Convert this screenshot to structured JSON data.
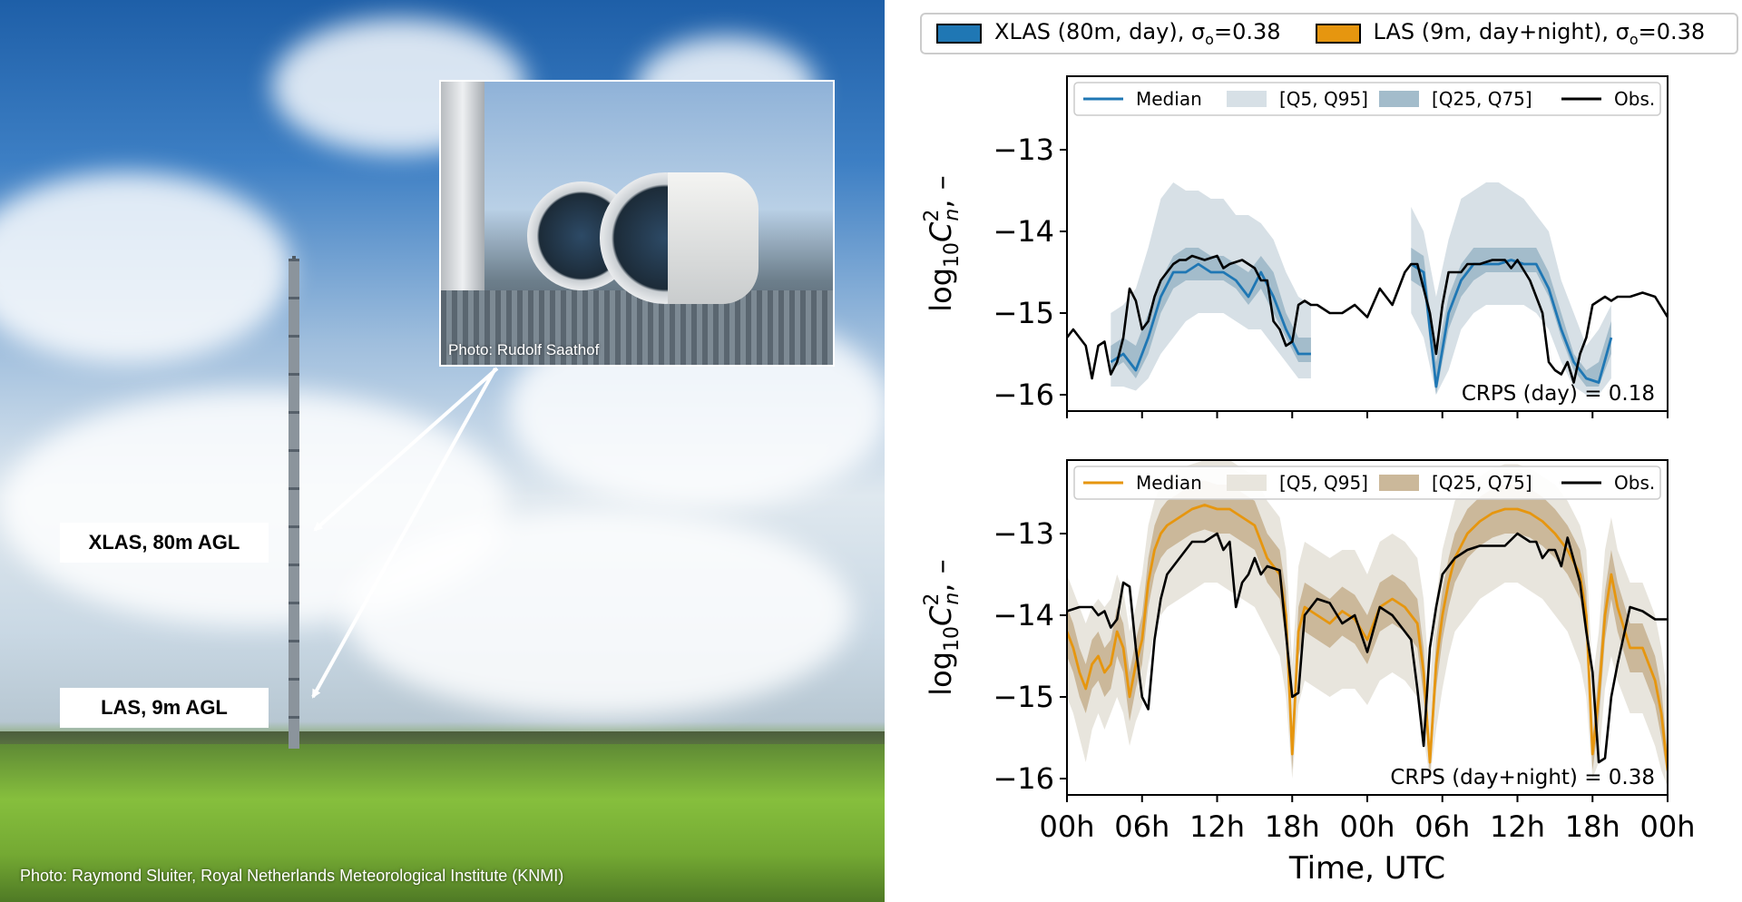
{
  "photo": {
    "label_xlas": "XLAS, 80m AGL",
    "label_las": "LAS, 9m AGL",
    "inset_credit": "Photo: Rudolf Saathof",
    "main_credit": "Photo: Raymond Sluiter, Royal Netherlands Meteorological Institute (KNMI)"
  },
  "top_legend": [
    {
      "text": "XLAS (80m, day), σ",
      "sub": "o",
      "suffix": "=0.38",
      "color": "#1f77b4"
    },
    {
      "text": "LAS (9m, day+night), σ",
      "sub": "o",
      "suffix": "=0.38",
      "color": "#e6960f"
    }
  ],
  "chart_data": [
    {
      "type": "line",
      "ylabel": "log10Cn2, –",
      "ylabel_parts": {
        "base": "log",
        "base_sub": "10",
        "var": "C",
        "var_sup": "2",
        "var_sub": "n",
        "unit": ", –"
      },
      "xlim": [
        0,
        48
      ],
      "ylim": [
        -16.2,
        -12.1
      ],
      "yticks": [
        -16,
        -15,
        -14,
        -13
      ],
      "ytick_labels": [
        "−16",
        "−15",
        "−14",
        "−13"
      ],
      "xticks": [
        0,
        6,
        12,
        18,
        24,
        30,
        36,
        42,
        48
      ],
      "xtick_labels": [],
      "grid": false,
      "legend": {
        "placement": "top",
        "entries": [
          "Median",
          "[Q5, Q95]",
          "[Q25, Q75]",
          "Obs."
        ]
      },
      "annotation": "CRPS (day) = 0.18",
      "colors": {
        "median": "#1f77b4",
        "q95": "#d7e0e6",
        "q75": "#a3bccb",
        "obs": "#000000"
      },
      "segments": [
        {
          "x": [
            3.5,
            4.5,
            5.5,
            6.5,
            7.5,
            8.5,
            9.5,
            10.5,
            11.5,
            12.5,
            13.5,
            14.5,
            15.5,
            16.5,
            17.5,
            18.5,
            19.5
          ],
          "median": [
            -15.6,
            -15.5,
            -15.7,
            -15.3,
            -14.8,
            -14.5,
            -14.5,
            -14.4,
            -14.5,
            -14.5,
            -14.6,
            -14.8,
            -14.5,
            -14.8,
            -15.2,
            -15.5,
            -15.5
          ],
          "q5": [
            -15.9,
            -15.9,
            -15.95,
            -15.8,
            -15.5,
            -15.3,
            -15.1,
            -15.0,
            -15.0,
            -15.0,
            -15.1,
            -15.2,
            -15.2,
            -15.4,
            -15.6,
            -15.8,
            -15.8
          ],
          "q95": [
            -15.0,
            -14.9,
            -14.7,
            -14.2,
            -13.6,
            -13.4,
            -13.5,
            -13.5,
            -13.6,
            -13.6,
            -13.8,
            -13.8,
            -13.9,
            -14.1,
            -14.5,
            -14.8,
            -14.9
          ],
          "q25": [
            -15.7,
            -15.6,
            -15.8,
            -15.5,
            -15.0,
            -14.7,
            -14.6,
            -14.6,
            -14.6,
            -14.6,
            -14.7,
            -14.9,
            -14.7,
            -15.0,
            -15.3,
            -15.6,
            -15.6
          ],
          "q75": [
            -15.4,
            -15.3,
            -15.4,
            -15.0,
            -14.6,
            -14.3,
            -14.2,
            -14.2,
            -14.3,
            -14.3,
            -14.4,
            -14.5,
            -14.3,
            -14.5,
            -15.0,
            -15.3,
            -15.3
          ]
        },
        {
          "x": [
            27.5,
            28.5,
            29.5,
            30.5,
            31.5,
            32.5,
            33.5,
            34.5,
            35.5,
            36.5,
            37.5,
            38.5,
            39.5,
            40.5,
            41.5,
            42.5,
            43.5
          ],
          "median": [
            -14.4,
            -14.5,
            -15.9,
            -15.0,
            -14.6,
            -14.4,
            -14.4,
            -14.4,
            -14.35,
            -14.4,
            -14.4,
            -14.7,
            -15.2,
            -15.6,
            -15.8,
            -15.85,
            -15.3
          ],
          "q5": [
            -15.0,
            -15.3,
            -16.0,
            -15.7,
            -15.2,
            -15.0,
            -14.9,
            -14.9,
            -14.9,
            -14.9,
            -15.0,
            -15.2,
            -15.6,
            -15.9,
            -16.0,
            -16.0,
            -15.8
          ],
          "q95": [
            -13.7,
            -14.0,
            -14.8,
            -14.1,
            -13.6,
            -13.5,
            -13.4,
            -13.4,
            -13.5,
            -13.6,
            -13.8,
            -14.0,
            -14.6,
            -15.0,
            -15.4,
            -15.2,
            -14.9
          ],
          "q25": [
            -14.6,
            -14.7,
            -16.0,
            -15.2,
            -14.8,
            -14.6,
            -14.5,
            -14.5,
            -14.5,
            -14.5,
            -14.5,
            -14.8,
            -15.3,
            -15.7,
            -15.9,
            -15.9,
            -15.5
          ],
          "q75": [
            -14.2,
            -14.3,
            -15.6,
            -14.8,
            -14.4,
            -14.2,
            -14.2,
            -14.2,
            -14.2,
            -14.2,
            -14.2,
            -14.5,
            -15.0,
            -15.5,
            -15.7,
            -15.6,
            -15.1
          ]
        }
      ],
      "obs": {
        "x": [
          0,
          0.5,
          1.5,
          2,
          2.5,
          3,
          3.5,
          4,
          4.5,
          5,
          5.5,
          6,
          6.5,
          7,
          7.5,
          8,
          8.5,
          9,
          9.5,
          10,
          11,
          12,
          12.5,
          13,
          14,
          15,
          15.5,
          16,
          16.5,
          17,
          17.5,
          18,
          18.5,
          19,
          19.5,
          20,
          21,
          22,
          23,
          24,
          25,
          25.5,
          26,
          27,
          27.5,
          28,
          29,
          29.5,
          30,
          30.5,
          31,
          31.5,
          32,
          33,
          34,
          35,
          35.5,
          36,
          37,
          37.5,
          38,
          38.5,
          39,
          39.5,
          40,
          40.5,
          41,
          41.5,
          42,
          42.5,
          43,
          43.5,
          44,
          45,
          46,
          47,
          48
        ],
        "y": [
          -15.3,
          -15.2,
          -15.4,
          -15.8,
          -15.4,
          -15.35,
          -15.75,
          -15.6,
          -15.3,
          -14.7,
          -14.85,
          -15.2,
          -15.1,
          -14.8,
          -14.6,
          -14.5,
          -14.4,
          -14.35,
          -14.35,
          -14.3,
          -14.35,
          -14.3,
          -14.45,
          -14.4,
          -14.35,
          -14.45,
          -14.6,
          -14.6,
          -15.1,
          -15.2,
          -15.4,
          -15.35,
          -14.9,
          -14.85,
          -14.9,
          -14.9,
          -15.0,
          -15.0,
          -14.9,
          -15.05,
          -14.7,
          -14.8,
          -14.9,
          -14.5,
          -14.4,
          -14.4,
          -15.0,
          -15.5,
          -14.9,
          -14.5,
          -14.5,
          -14.5,
          -14.4,
          -14.4,
          -14.35,
          -14.35,
          -14.45,
          -14.35,
          -14.6,
          -14.8,
          -15.0,
          -15.6,
          -15.7,
          -15.75,
          -15.6,
          -15.85,
          -15.5,
          -15.3,
          -14.9,
          -14.85,
          -14.8,
          -14.85,
          -14.8,
          -14.8,
          -14.75,
          -14.8,
          -15.05
        ]
      }
    },
    {
      "type": "line",
      "xlabel": "Time, UTC",
      "ylabel": "log10Cn2, –",
      "ylabel_parts": {
        "base": "log",
        "base_sub": "10",
        "var": "C",
        "var_sup": "2",
        "var_sub": "n",
        "unit": ", –"
      },
      "xlim": [
        0,
        48
      ],
      "ylim": [
        -16.2,
        -12.1
      ],
      "yticks": [
        -16,
        -15,
        -14,
        -13
      ],
      "ytick_labels": [
        "−16",
        "−15",
        "−14",
        "−13"
      ],
      "xticks": [
        0,
        6,
        12,
        18,
        24,
        30,
        36,
        42,
        48
      ],
      "xtick_labels": [
        "00h",
        "06h",
        "12h",
        "18h",
        "00h",
        "06h",
        "12h",
        "18h",
        "00h"
      ],
      "grid": false,
      "legend": {
        "placement": "top",
        "entries": [
          "Median",
          "[Q5, Q95]",
          "[Q25, Q75]",
          "Obs."
        ]
      },
      "annotation": "CRPS (day+night) = 0.38",
      "colors": {
        "median": "#e6960f",
        "q95": "#e8e5dd",
        "q75": "#cbb89a",
        "obs": "#000000"
      },
      "segments": [
        {
          "x": [
            0,
            0.5,
            1,
            1.5,
            2,
            2.5,
            3,
            3.5,
            4,
            4.5,
            5,
            5.5,
            6,
            6.5,
            7,
            7.5,
            8,
            9,
            10,
            11,
            12,
            13,
            14,
            15,
            16,
            17,
            17.5,
            18,
            18.5,
            19,
            20,
            21,
            22,
            23,
            24,
            25,
            26,
            27,
            28,
            28.5,
            29,
            29.5,
            30,
            30.5,
            31,
            32,
            33,
            34,
            35,
            36,
            37,
            38,
            39,
            40,
            41,
            41.5,
            42,
            42.5,
            43,
            43.5,
            44,
            45,
            46,
            47,
            47.5,
            48
          ],
          "median": [
            -14.2,
            -14.4,
            -14.7,
            -14.9,
            -14.6,
            -14.5,
            -14.7,
            -14.6,
            -14.2,
            -14.4,
            -15.0,
            -14.6,
            -14.3,
            -13.6,
            -13.2,
            -13.0,
            -12.9,
            -12.8,
            -12.7,
            -12.65,
            -12.7,
            -12.7,
            -12.8,
            -12.9,
            -13.3,
            -13.5,
            -14.0,
            -15.7,
            -14.2,
            -13.9,
            -14.0,
            -14.1,
            -13.95,
            -14.05,
            -14.3,
            -13.9,
            -13.8,
            -13.9,
            -14.1,
            -14.7,
            -15.8,
            -14.6,
            -14.0,
            -13.6,
            -13.3,
            -13.0,
            -12.85,
            -12.75,
            -12.7,
            -12.7,
            -12.75,
            -12.85,
            -13.0,
            -13.2,
            -13.5,
            -14.0,
            -15.7,
            -15.0,
            -14.0,
            -13.5,
            -13.9,
            -14.4,
            -14.4,
            -14.8,
            -15.2,
            -15.9
          ],
          "q5": [
            -15.0,
            -15.2,
            -15.5,
            -15.8,
            -15.4,
            -15.2,
            -15.4,
            -15.2,
            -15.0,
            -15.2,
            -15.6,
            -15.3,
            -15.1,
            -14.6,
            -14.2,
            -14.0,
            -13.9,
            -13.8,
            -13.7,
            -13.6,
            -13.6,
            -13.7,
            -13.8,
            -13.9,
            -14.2,
            -14.5,
            -15.0,
            -16.0,
            -15.1,
            -14.8,
            -14.9,
            -15.0,
            -14.9,
            -14.9,
            -15.1,
            -14.8,
            -14.7,
            -14.8,
            -15.0,
            -15.5,
            -16.0,
            -15.4,
            -14.9,
            -14.5,
            -14.2,
            -14.0,
            -13.8,
            -13.7,
            -13.6,
            -13.6,
            -13.7,
            -13.8,
            -14.0,
            -14.2,
            -14.6,
            -15.0,
            -16.0,
            -15.8,
            -14.9,
            -14.5,
            -14.8,
            -15.2,
            -15.2,
            -15.6,
            -15.9,
            -16.1
          ],
          "q95": [
            -13.5,
            -13.7,
            -13.9,
            -14.1,
            -13.9,
            -13.8,
            -13.9,
            -13.8,
            -13.5,
            -13.7,
            -14.2,
            -13.9,
            -13.5,
            -12.9,
            -12.6,
            -12.4,
            -12.3,
            -12.2,
            -12.15,
            -12.1,
            -12.1,
            -12.1,
            -12.2,
            -12.3,
            -12.6,
            -12.8,
            -13.2,
            -14.6,
            -13.4,
            -13.1,
            -13.2,
            -13.3,
            -13.2,
            -13.2,
            -13.5,
            -13.1,
            -13.0,
            -13.1,
            -13.3,
            -13.8,
            -14.9,
            -13.8,
            -13.2,
            -12.9,
            -12.6,
            -12.4,
            -12.3,
            -12.2,
            -12.15,
            -12.15,
            -12.2,
            -12.3,
            -12.4,
            -12.6,
            -12.9,
            -13.2,
            -14.8,
            -14.2,
            -13.2,
            -12.8,
            -13.2,
            -13.6,
            -13.6,
            -14.0,
            -14.4,
            -15.0
          ],
          "q25": [
            -14.5,
            -14.7,
            -15.0,
            -15.2,
            -14.9,
            -14.8,
            -15.0,
            -14.9,
            -14.5,
            -14.7,
            -15.3,
            -14.9,
            -14.6,
            -13.9,
            -13.5,
            -13.3,
            -13.2,
            -13.1,
            -13.0,
            -12.95,
            -13.0,
            -13.0,
            -13.1,
            -13.2,
            -13.6,
            -13.8,
            -14.3,
            -15.9,
            -14.5,
            -14.2,
            -14.3,
            -14.4,
            -14.25,
            -14.35,
            -14.6,
            -14.2,
            -14.1,
            -14.2,
            -14.4,
            -15.0,
            -15.95,
            -14.9,
            -14.3,
            -13.9,
            -13.6,
            -13.3,
            -13.15,
            -13.05,
            -13.0,
            -13.0,
            -13.05,
            -13.15,
            -13.3,
            -13.5,
            -13.8,
            -14.3,
            -15.9,
            -15.3,
            -14.3,
            -13.8,
            -14.2,
            -14.7,
            -14.7,
            -15.1,
            -15.5,
            -16.0
          ],
          "q75": [
            -13.9,
            -14.1,
            -14.4,
            -14.6,
            -14.3,
            -14.2,
            -14.4,
            -14.3,
            -13.9,
            -14.1,
            -14.7,
            -14.3,
            -14.0,
            -13.3,
            -12.9,
            -12.7,
            -12.6,
            -12.5,
            -12.4,
            -12.35,
            -12.4,
            -12.4,
            -12.5,
            -12.6,
            -13.0,
            -13.2,
            -13.7,
            -15.4,
            -13.9,
            -13.6,
            -13.7,
            -13.8,
            -13.65,
            -13.75,
            -14.0,
            -13.6,
            -13.5,
            -13.6,
            -13.8,
            -14.4,
            -15.6,
            -14.3,
            -13.7,
            -13.3,
            -13.0,
            -12.7,
            -12.55,
            -12.45,
            -12.4,
            -12.4,
            -12.45,
            -12.55,
            -12.7,
            -12.9,
            -13.2,
            -13.7,
            -15.5,
            -14.7,
            -13.7,
            -13.2,
            -13.6,
            -14.1,
            -14.1,
            -14.5,
            -14.9,
            -15.7
          ]
        }
      ],
      "obs": {
        "x": [
          0,
          1,
          2,
          2.5,
          3,
          3.5,
          4,
          4.5,
          5,
          5.5,
          6,
          6.5,
          7,
          7.5,
          8,
          9,
          10,
          11,
          12,
          12.5,
          13,
          13.5,
          14,
          14.5,
          15,
          15.5,
          16,
          17,
          18,
          18.5,
          19,
          20,
          21,
          22,
          23,
          24,
          25,
          26,
          27,
          27.5,
          28,
          28.5,
          29,
          29.5,
          30,
          31,
          32,
          33,
          34,
          35,
          36,
          37,
          37.5,
          38,
          38.5,
          39,
          39.5,
          40,
          41,
          41.5,
          42,
          42.5,
          43,
          43.5,
          44,
          45,
          46,
          47,
          48
        ],
        "y": [
          -13.95,
          -13.9,
          -13.9,
          -14.0,
          -13.95,
          -14.15,
          -14.05,
          -13.6,
          -13.65,
          -14.4,
          -15.0,
          -15.15,
          -14.3,
          -13.8,
          -13.5,
          -13.3,
          -13.1,
          -13.1,
          -13.0,
          -13.2,
          -13.1,
          -13.9,
          -13.6,
          -13.5,
          -13.3,
          -13.5,
          -13.4,
          -13.45,
          -15.0,
          -14.95,
          -14.0,
          -13.8,
          -13.85,
          -14.1,
          -14.0,
          -14.45,
          -13.9,
          -14.0,
          -14.2,
          -14.3,
          -14.9,
          -15.6,
          -14.4,
          -13.9,
          -13.5,
          -13.3,
          -13.2,
          -13.15,
          -13.15,
          -13.15,
          -13.0,
          -13.1,
          -13.1,
          -13.3,
          -13.2,
          -13.2,
          -13.4,
          -13.05,
          -13.6,
          -14.2,
          -14.7,
          -15.8,
          -15.75,
          -15.0,
          -14.6,
          -13.9,
          -13.95,
          -14.05,
          -14.05
        ]
      }
    }
  ]
}
